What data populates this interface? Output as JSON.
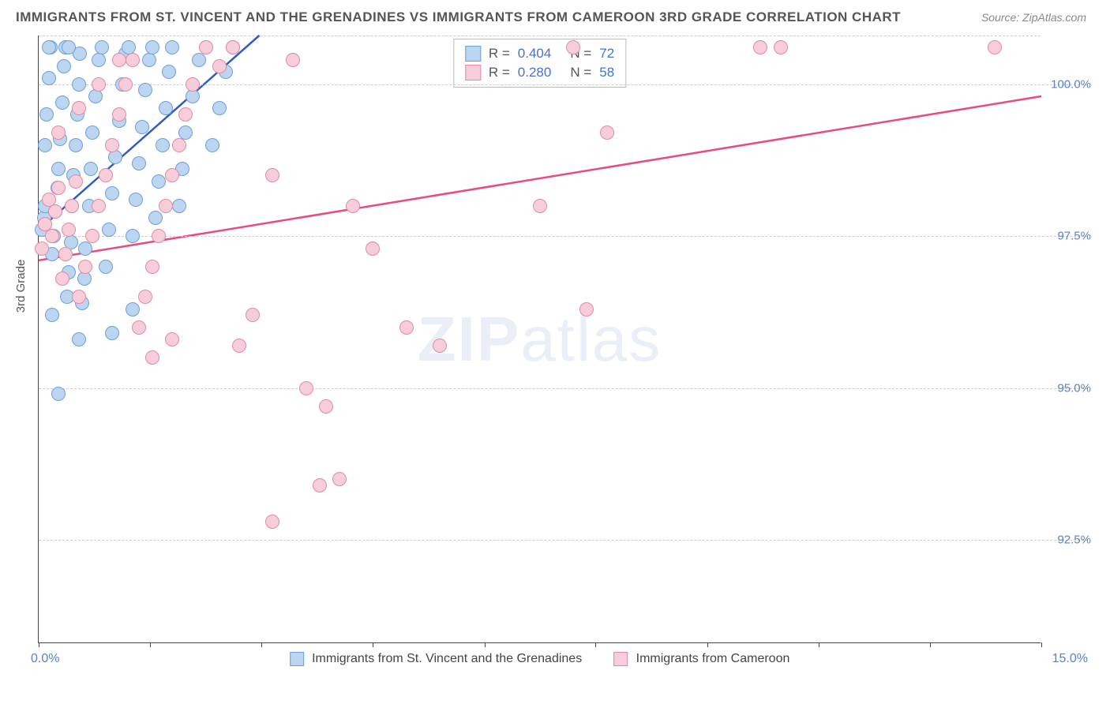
{
  "title": "IMMIGRANTS FROM ST. VINCENT AND THE GRENADINES VS IMMIGRANTS FROM CAMEROON 3RD GRADE CORRELATION CHART",
  "source_label": "Source:",
  "source_value": "ZipAtlas.com",
  "y_axis_title": "3rd Grade",
  "watermark_a": "ZIP",
  "watermark_b": "atlas",
  "chart": {
    "type": "scatter",
    "background_color": "#ffffff",
    "grid_color": "#cccccc",
    "axis_color": "#444444",
    "tick_label_color": "#5b7fc7",
    "xlim": [
      0.0,
      15.0
    ],
    "ylim": [
      90.8,
      100.8
    ],
    "x_ticks": [
      0.0,
      1.67,
      3.33,
      5.0,
      6.67,
      8.33,
      10.0,
      11.67,
      13.33,
      15.0
    ],
    "x_labels": {
      "min": "0.0%",
      "max": "15.0%"
    },
    "y_grid": [
      {
        "v": 92.5,
        "label": "92.5%"
      },
      {
        "v": 95.0,
        "label": "95.0%"
      },
      {
        "v": 97.5,
        "label": "97.5%"
      },
      {
        "v": 100.0,
        "label": "100.0%"
      }
    ],
    "series": [
      {
        "name": "Immigrants from St. Vincent and the Grenadines",
        "fill_color": "#bcd5f0",
        "stroke_color": "#6f9fd8",
        "line_color": "#2e5cc0",
        "R": "0.404",
        "N": "72",
        "trend": {
          "x1": 0.0,
          "y1": 97.6,
          "x2": 3.3,
          "y2": 100.8
        },
        "points": [
          [
            0.05,
            97.6
          ],
          [
            0.08,
            97.8
          ],
          [
            0.1,
            98.0
          ],
          [
            0.1,
            99.0
          ],
          [
            0.12,
            99.5
          ],
          [
            0.15,
            100.1
          ],
          [
            0.18,
            100.6
          ],
          [
            0.2,
            97.2
          ],
          [
            0.22,
            97.5
          ],
          [
            0.25,
            97.9
          ],
          [
            0.28,
            98.3
          ],
          [
            0.3,
            98.6
          ],
          [
            0.32,
            99.1
          ],
          [
            0.35,
            99.7
          ],
          [
            0.38,
            100.3
          ],
          [
            0.4,
            100.6
          ],
          [
            0.42,
            96.5
          ],
          [
            0.45,
            96.9
          ],
          [
            0.48,
            97.4
          ],
          [
            0.5,
            98.0
          ],
          [
            0.52,
            98.5
          ],
          [
            0.55,
            99.0
          ],
          [
            0.58,
            99.5
          ],
          [
            0.6,
            100.0
          ],
          [
            0.62,
            100.5
          ],
          [
            0.65,
            96.4
          ],
          [
            0.68,
            96.8
          ],
          [
            0.7,
            97.3
          ],
          [
            0.75,
            98.0
          ],
          [
            0.78,
            98.6
          ],
          [
            0.8,
            99.2
          ],
          [
            0.85,
            99.8
          ],
          [
            0.9,
            100.4
          ],
          [
            0.95,
            100.6
          ],
          [
            1.0,
            97.0
          ],
          [
            1.05,
            97.6
          ],
          [
            1.1,
            98.2
          ],
          [
            1.15,
            98.8
          ],
          [
            1.2,
            99.4
          ],
          [
            1.25,
            100.0
          ],
          [
            1.3,
            100.5
          ],
          [
            1.35,
            100.6
          ],
          [
            1.4,
            97.5
          ],
          [
            1.45,
            98.1
          ],
          [
            1.5,
            98.7
          ],
          [
            1.55,
            99.3
          ],
          [
            1.6,
            99.9
          ],
          [
            1.65,
            100.4
          ],
          [
            1.7,
            100.6
          ],
          [
            1.75,
            97.8
          ],
          [
            1.8,
            98.4
          ],
          [
            1.85,
            99.0
          ],
          [
            1.9,
            99.6
          ],
          [
            1.95,
            100.2
          ],
          [
            2.0,
            100.6
          ],
          [
            2.1,
            98.0
          ],
          [
            2.15,
            98.6
          ],
          [
            2.2,
            99.2
          ],
          [
            2.3,
            99.8
          ],
          [
            2.4,
            100.4
          ],
          [
            2.5,
            100.6
          ],
          [
            2.6,
            99.0
          ],
          [
            2.7,
            99.6
          ],
          [
            2.8,
            100.2
          ],
          [
            2.9,
            100.6
          ],
          [
            0.2,
            96.2
          ],
          [
            0.6,
            95.8
          ],
          [
            0.3,
            94.9
          ],
          [
            1.4,
            96.3
          ],
          [
            1.1,
            95.9
          ],
          [
            0.15,
            100.6
          ],
          [
            0.45,
            100.6
          ]
        ]
      },
      {
        "name": "Immigrants from Cameroon",
        "fill_color": "#f7cdd9",
        "stroke_color": "#e08ba5",
        "line_color": "#e94b7a",
        "R": "0.280",
        "N": "58",
        "trend": {
          "x1": 0.0,
          "y1": 97.1,
          "x2": 15.0,
          "y2": 99.8
        },
        "points": [
          [
            0.05,
            97.3
          ],
          [
            0.1,
            97.7
          ],
          [
            0.15,
            98.1
          ],
          [
            0.2,
            97.5
          ],
          [
            0.25,
            97.9
          ],
          [
            0.3,
            98.3
          ],
          [
            0.35,
            96.8
          ],
          [
            0.4,
            97.2
          ],
          [
            0.45,
            97.6
          ],
          [
            0.5,
            98.0
          ],
          [
            0.55,
            98.4
          ],
          [
            0.6,
            96.5
          ],
          [
            0.7,
            97.0
          ],
          [
            0.8,
            97.5
          ],
          [
            0.9,
            98.0
          ],
          [
            1.0,
            98.5
          ],
          [
            1.1,
            99.0
          ],
          [
            1.2,
            99.5
          ],
          [
            1.3,
            100.0
          ],
          [
            1.4,
            100.4
          ],
          [
            1.5,
            96.0
          ],
          [
            1.6,
            96.5
          ],
          [
            1.7,
            97.0
          ],
          [
            1.8,
            97.5
          ],
          [
            1.9,
            98.0
          ],
          [
            2.0,
            98.5
          ],
          [
            2.1,
            99.0
          ],
          [
            2.2,
            99.5
          ],
          [
            2.3,
            100.0
          ],
          [
            2.5,
            100.6
          ],
          [
            2.7,
            100.3
          ],
          [
            3.0,
            95.7
          ],
          [
            3.2,
            96.2
          ],
          [
            3.5,
            98.5
          ],
          [
            3.8,
            100.4
          ],
          [
            4.0,
            95.0
          ],
          [
            4.2,
            93.4
          ],
          [
            4.3,
            94.7
          ],
          [
            4.5,
            93.5
          ],
          [
            4.7,
            98.0
          ],
          [
            5.0,
            97.3
          ],
          [
            5.5,
            96.0
          ],
          [
            6.0,
            95.7
          ],
          [
            3.5,
            92.8
          ],
          [
            7.5,
            98.0
          ],
          [
            8.0,
            100.6
          ],
          [
            8.2,
            96.3
          ],
          [
            8.5,
            99.2
          ],
          [
            10.8,
            100.6
          ],
          [
            11.1,
            100.6
          ],
          [
            14.3,
            100.6
          ],
          [
            2.9,
            100.6
          ],
          [
            2.0,
            95.8
          ],
          [
            1.7,
            95.5
          ],
          [
            0.3,
            99.2
          ],
          [
            0.6,
            99.6
          ],
          [
            0.9,
            100.0
          ],
          [
            1.2,
            100.4
          ]
        ]
      }
    ]
  }
}
